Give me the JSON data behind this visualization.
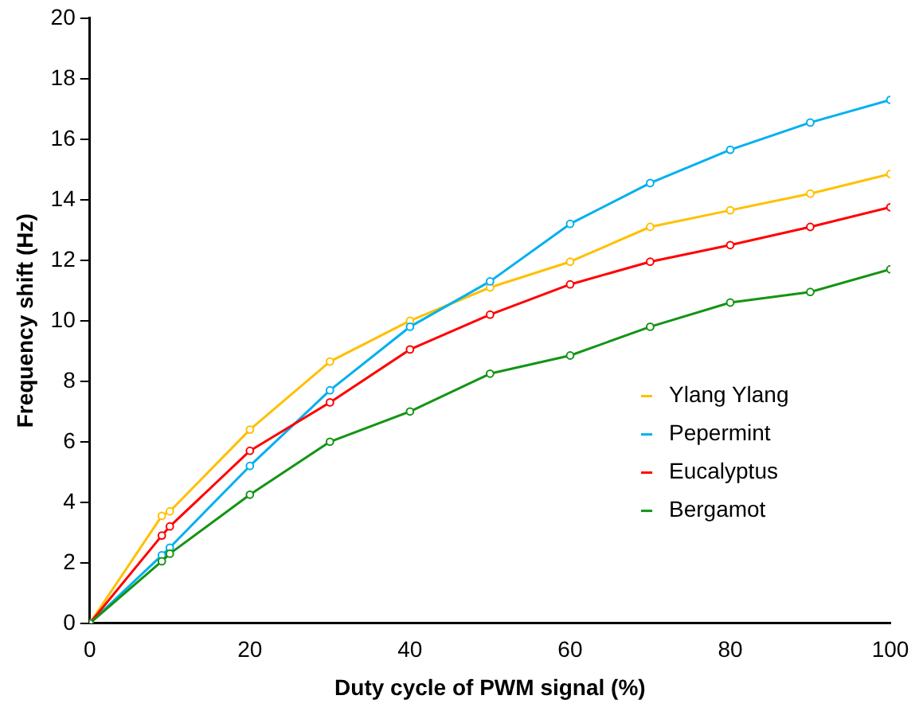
{
  "chart_data": {
    "type": "line",
    "xlabel": "Duty cycle of PWM signal (%)",
    "ylabel": "Frequency shift (Hz)",
    "x": [
      0,
      9,
      10,
      20,
      30,
      40,
      50,
      60,
      70,
      80,
      90,
      100
    ],
    "xlim": [
      0,
      100
    ],
    "xticks": [
      0,
      20,
      40,
      60,
      80,
      100
    ],
    "ylim": [
      0,
      20
    ],
    "yticks": [
      0,
      2,
      4,
      6,
      8,
      10,
      12,
      14,
      16,
      18,
      20
    ],
    "grid": false,
    "legend": "right",
    "marker": "circle",
    "line_style": "solid",
    "series": [
      {
        "name": "Ylang Ylang",
        "color": "#ffc000",
        "values": [
          0,
          3.55,
          3.7,
          6.4,
          8.65,
          10.0,
          11.1,
          11.95,
          13.1,
          13.65,
          14.2,
          14.85
        ]
      },
      {
        "name": "Pepermint",
        "color": "#00b0f0",
        "values": [
          0,
          2.25,
          2.5,
          5.2,
          7.7,
          9.8,
          11.3,
          13.2,
          14.55,
          15.65,
          16.55,
          17.3
        ]
      },
      {
        "name": "Eucalyptus",
        "color": "#ff0000",
        "values": [
          0,
          2.9,
          3.2,
          5.7,
          7.3,
          9.05,
          10.2,
          11.2,
          11.95,
          12.5,
          13.1,
          13.75
        ]
      },
      {
        "name": "Bergamot",
        "color": "#149414",
        "values": [
          0,
          2.05,
          2.3,
          4.25,
          6.0,
          7.0,
          8.25,
          8.85,
          9.8,
          10.6,
          10.95,
          11.7
        ]
      }
    ]
  }
}
